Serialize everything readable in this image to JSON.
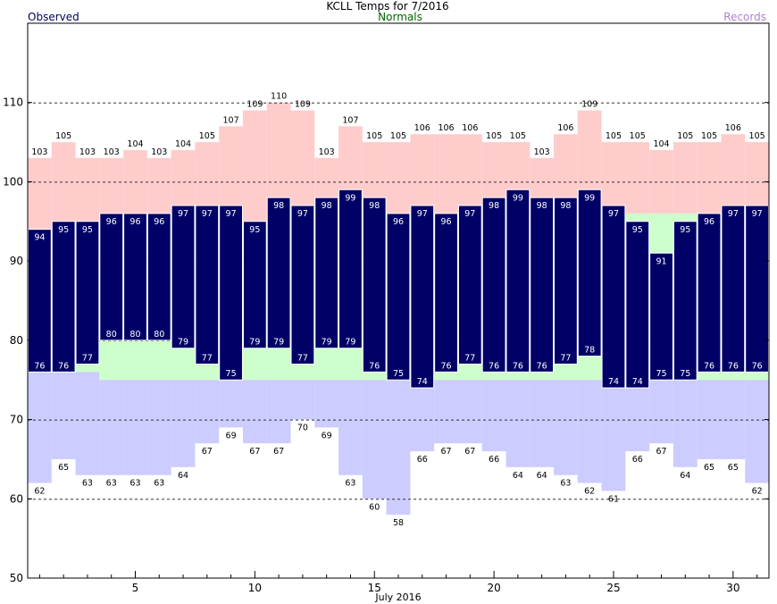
{
  "chart_data": {
    "type": "bar",
    "title": "KCLL Temps for 7/2016",
    "xlabel": "July 2016",
    "ylabel": "",
    "legend": {
      "observed": "Observed",
      "normals": "Normals",
      "records": "Records"
    },
    "colors": {
      "observed": "#000066",
      "normals": "#ccffcc",
      "record_high": "#ffcccc",
      "record_low": "#ccccff",
      "normals_text": "#006600",
      "records_text": "#b080d0",
      "grid": "#333333"
    },
    "ylim": [
      50,
      120
    ],
    "yticks": [
      50,
      60,
      70,
      80,
      90,
      100,
      110
    ],
    "xlim": [
      0.5,
      31.5
    ],
    "xticks": [
      5,
      10,
      15,
      20,
      25,
      30
    ],
    "grid": "dashed horizontal at 60, 70, 80, 90, 100, 110",
    "days": [
      1,
      2,
      3,
      4,
      5,
      6,
      7,
      8,
      9,
      10,
      11,
      12,
      13,
      14,
      15,
      16,
      17,
      18,
      19,
      20,
      21,
      22,
      23,
      24,
      25,
      26,
      27,
      28,
      29,
      30,
      31
    ],
    "observed_high": [
      94,
      95,
      95,
      96,
      96,
      96,
      97,
      97,
      97,
      95,
      98,
      97,
      98,
      99,
      98,
      96,
      97,
      96,
      97,
      98,
      99,
      98,
      98,
      99,
      97,
      95,
      91,
      95,
      96,
      97,
      97
    ],
    "observed_low": [
      76,
      76,
      77,
      80,
      80,
      80,
      79,
      77,
      75,
      79,
      79,
      77,
      79,
      79,
      76,
      75,
      74,
      76,
      77,
      76,
      76,
      76,
      77,
      78,
      74,
      74,
      75,
      75,
      76,
      76,
      76
    ],
    "normal_high": [
      94,
      94,
      95,
      95,
      95,
      95,
      95,
      95,
      95,
      95,
      95,
      95,
      95,
      95,
      95,
      96,
      96,
      96,
      96,
      96,
      96,
      96,
      96,
      96,
      96,
      96,
      96,
      96,
      96,
      96,
      96
    ],
    "normal_low": [
      76,
      76,
      76,
      75,
      75,
      75,
      75,
      75,
      75,
      75,
      75,
      75,
      75,
      75,
      75,
      75,
      75,
      75,
      75,
      75,
      75,
      75,
      75,
      75,
      75,
      75,
      75,
      75,
      75,
      75,
      75
    ],
    "record_high": [
      103,
      105,
      103,
      103,
      104,
      103,
      104,
      105,
      107,
      109,
      110,
      109,
      103,
      107,
      105,
      105,
      106,
      106,
      106,
      105,
      105,
      103,
      106,
      109,
      105,
      105,
      104,
      105,
      105,
      106,
      105
    ],
    "record_low": [
      62,
      65,
      63,
      63,
      63,
      63,
      64,
      67,
      69,
      67,
      67,
      70,
      69,
      63,
      60,
      58,
      66,
      67,
      67,
      66,
      64,
      64,
      63,
      62,
      61,
      66,
      67,
      64,
      65,
      65,
      62
    ]
  }
}
